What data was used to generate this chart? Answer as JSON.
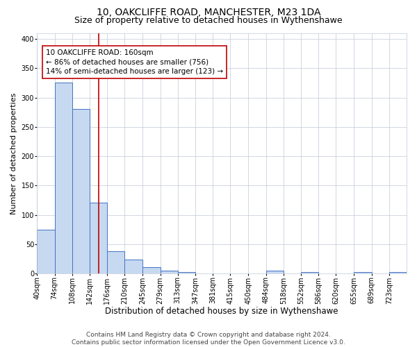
{
  "title1": "10, OAKCLIFFE ROAD, MANCHESTER, M23 1DA",
  "title2": "Size of property relative to detached houses in Wythenshawe",
  "xlabel": "Distribution of detached houses by size in Wythenshawe",
  "ylabel": "Number of detached properties",
  "bin_labels": [
    "40sqm",
    "74sqm",
    "108sqm",
    "142sqm",
    "176sqm",
    "210sqm",
    "245sqm",
    "279sqm",
    "313sqm",
    "347sqm",
    "381sqm",
    "415sqm",
    "450sqm",
    "484sqm",
    "518sqm",
    "552sqm",
    "586sqm",
    "620sqm",
    "655sqm",
    "689sqm",
    "723sqm"
  ],
  "bin_edges": [
    40,
    74,
    108,
    142,
    176,
    210,
    245,
    279,
    313,
    347,
    381,
    415,
    450,
    484,
    518,
    552,
    586,
    620,
    655,
    689,
    723,
    757
  ],
  "bar_heights": [
    75,
    325,
    281,
    121,
    38,
    24,
    11,
    5,
    3,
    0,
    0,
    0,
    0,
    5,
    0,
    3,
    0,
    0,
    3,
    0,
    3
  ],
  "bar_color": "#c6d9f0",
  "bar_edge_color": "#4472c4",
  "property_size": 160,
  "vline_color": "#c00000",
  "annotation_line1": "10 OAKCLIFFE ROAD: 160sqm",
  "annotation_line2": "← 86% of detached houses are smaller (756)",
  "annotation_line3": "14% of semi-detached houses are larger (123) →",
  "annotation_box_color": "#ffffff",
  "annotation_box_edge_color": "#c00000",
  "ylim": [
    0,
    410
  ],
  "yticks": [
    0,
    50,
    100,
    150,
    200,
    250,
    300,
    350,
    400
  ],
  "footer_text": "Contains HM Land Registry data © Crown copyright and database right 2024.\nContains public sector information licensed under the Open Government Licence v3.0.",
  "grid_color": "#c0c8d8",
  "background_color": "#ffffff",
  "title1_fontsize": 10,
  "title2_fontsize": 9,
  "xlabel_fontsize": 8.5,
  "ylabel_fontsize": 8,
  "tick_fontsize": 7,
  "annotation_fontsize": 7.5,
  "footer_fontsize": 6.5
}
